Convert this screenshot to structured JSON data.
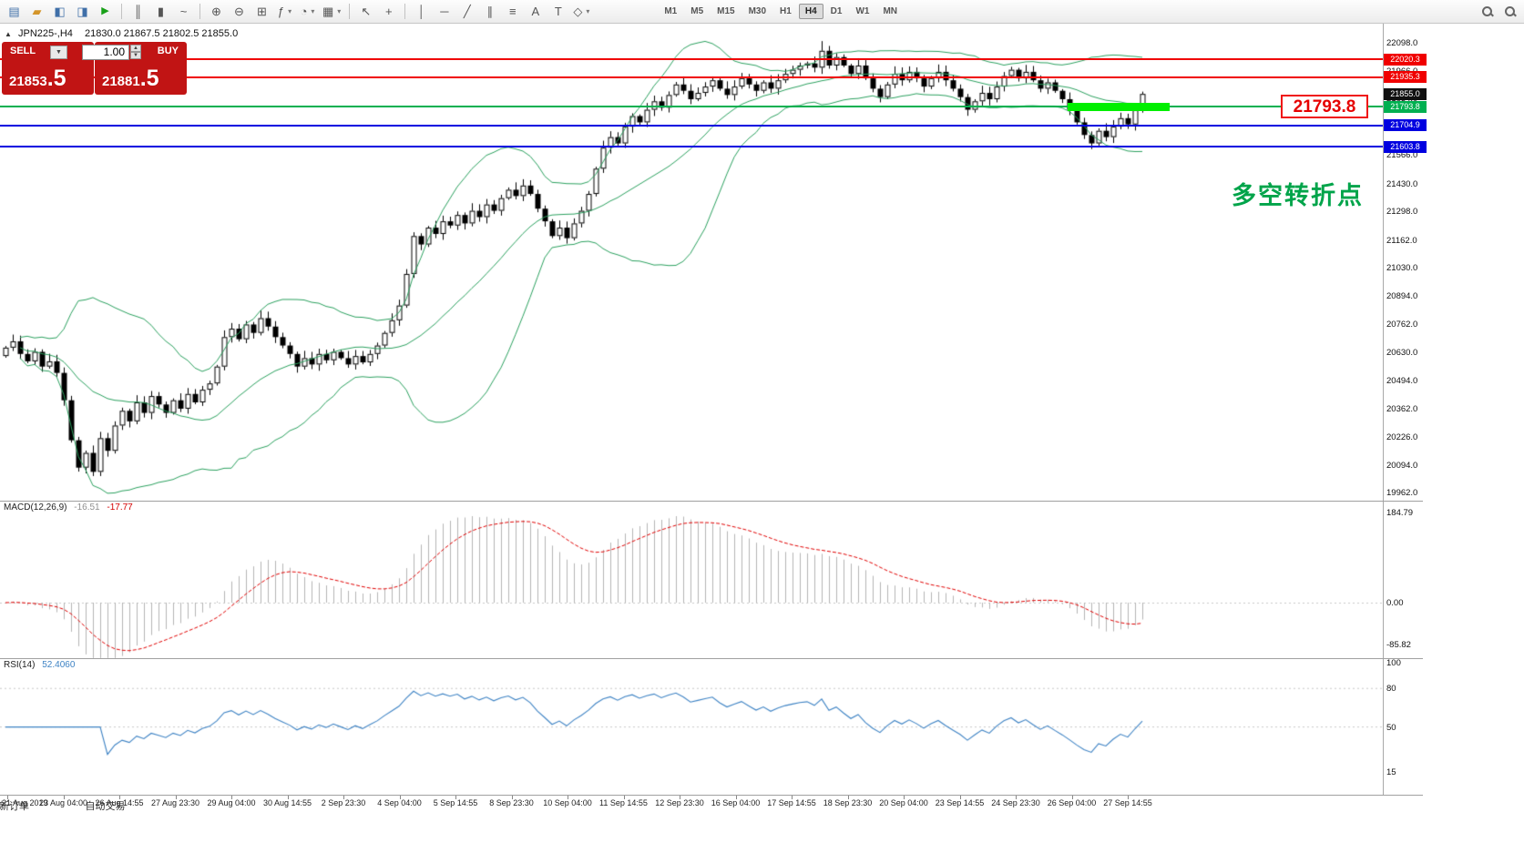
{
  "toolbar": {
    "new_order_label": "新订单",
    "autotrade_label": "自动交易",
    "timeframes": [
      "M1",
      "M5",
      "M15",
      "M30",
      "H1",
      "H4",
      "D1",
      "W1",
      "MN"
    ],
    "active_timeframe": "H4"
  },
  "chart": {
    "symbol_header": "JPN225-,H4",
    "ohlc_text": "21830.0 21867.5 21802.5 21855.0",
    "last_price": "21855.0"
  },
  "trade_panel": {
    "sell_label": "SELL",
    "buy_label": "BUY",
    "volume_value": "1.00",
    "sell_price": "21853",
    "sell_price_fraction": ".5",
    "buy_price": "21881",
    "buy_price_fraction": ".5"
  },
  "callout": {
    "text": "21793.8"
  },
  "annotation": {
    "text": "多空转折点",
    "color": "#00a44a"
  },
  "indicators": {
    "macd": {
      "name": "MACD(12,26,9)",
      "value1": "-16.51",
      "value2": "-17.77",
      "axis_labels": [
        "184.79",
        "0.00",
        "-85.82"
      ],
      "histogram_color": "#b4b4b4",
      "signal_color": "#e00000"
    },
    "rsi": {
      "name": "RSI(14)",
      "value": "52.4060",
      "axis_labels": [
        "100",
        "80",
        "50",
        "15"
      ],
      "levels": [
        80,
        50
      ],
      "line_color": "#3e83c4"
    }
  },
  "chart_data": {
    "type": "candlestick",
    "symbol": "JPN225-",
    "timeframe": "H4",
    "note": "series estimated from pixels; each bar opens at prior close",
    "closes": [
      20650,
      20680,
      20620,
      20585,
      20630,
      20560,
      20585,
      20530,
      20400,
      20210,
      20080,
      20150,
      20060,
      20220,
      20160,
      20280,
      20350,
      20300,
      20390,
      20340,
      20420,
      20380,
      20340,
      20400,
      20360,
      20430,
      20390,
      20450,
      20480,
      20560,
      20700,
      20740,
      20690,
      20760,
      20720,
      20790,
      20750,
      20700,
      20660,
      20620,
      20560,
      20600,
      20570,
      20620,
      20590,
      20630,
      20600,
      20570,
      20610,
      20580,
      20620,
      20660,
      20720,
      20780,
      20850,
      21000,
      21180,
      21140,
      21220,
      21190,
      21250,
      21230,
      21280,
      21240,
      21300,
      21270,
      21330,
      21300,
      21360,
      21400,
      21370,
      21420,
      21380,
      21310,
      21250,
      21180,
      21220,
      21170,
      21240,
      21300,
      21380,
      21500,
      21600,
      21650,
      21620,
      21700,
      21750,
      21720,
      21780,
      21820,
      21790,
      21850,
      21900,
      21870,
      21830,
      21860,
      21890,
      21920,
      21880,
      21850,
      21890,
      21930,
      21900,
      21870,
      21910,
      21880,
      21920,
      21950,
      21970,
      21990,
      22000,
      21980,
      22060,
      21990,
      22030,
      21990,
      21950,
      21990,
      21930,
      21880,
      21840,
      21900,
      21950,
      21920,
      21960,
      21930,
      21890,
      21930,
      21960,
      21920,
      21880,
      21840,
      21780,
      21820,
      21860,
      21830,
      21890,
      21940,
      21970,
      21930,
      21960,
      21920,
      21880,
      21910,
      21870,
      21830,
      21780,
      21720,
      21660,
      21620,
      21680,
      21650,
      21700,
      21740,
      21710,
      21780,
      21855
    ],
    "overlays": {
      "bollinger_bands": {
        "period": 20,
        "deviation": 2,
        "color": "#2aa05e"
      }
    },
    "horizontal_levels": [
      {
        "price": 22020.3,
        "color": "#f00000"
      },
      {
        "price": 21935.3,
        "color": "#f00000"
      },
      {
        "price": 21793.8,
        "color": "#00b050",
        "highlight": true
      },
      {
        "price": 21704.9,
        "color": "#0000e0"
      },
      {
        "price": 21603.8,
        "color": "#0000e0"
      }
    ],
    "y_axis": {
      "min": 19962.0,
      "max": 22098.0,
      "tick_labels": [
        "22098.0",
        "21966.0",
        "21834.0",
        "21700.0",
        "21566.0",
        "21430.0",
        "21298.0",
        "21162.0",
        "21030.0",
        "20894.0",
        "20762.0",
        "20630.0",
        "20494.0",
        "20362.0",
        "20226.0",
        "20094.0",
        "19962.0"
      ]
    },
    "x_axis": {
      "labels": [
        "21 Aug 2019",
        "23 Aug 04:00",
        "26 Aug 14:55",
        "27 Aug 23:30",
        "29 Aug 04:00",
        "30 Aug 14:55",
        "2 Sep 23:30",
        "4 Sep 04:00",
        "5 Sep 14:55",
        "8 Sep 23:30",
        "10 Sep 04:00",
        "11 Sep 14:55",
        "12 Sep 23:30",
        "16 Sep 04:00",
        "17 Sep 14:55",
        "18 Sep 23:30",
        "20 Sep 04:00",
        "23 Sep 14:55",
        "24 Sep 23:30",
        "26 Sep 04:00",
        "27 Sep 14:55"
      ]
    }
  }
}
